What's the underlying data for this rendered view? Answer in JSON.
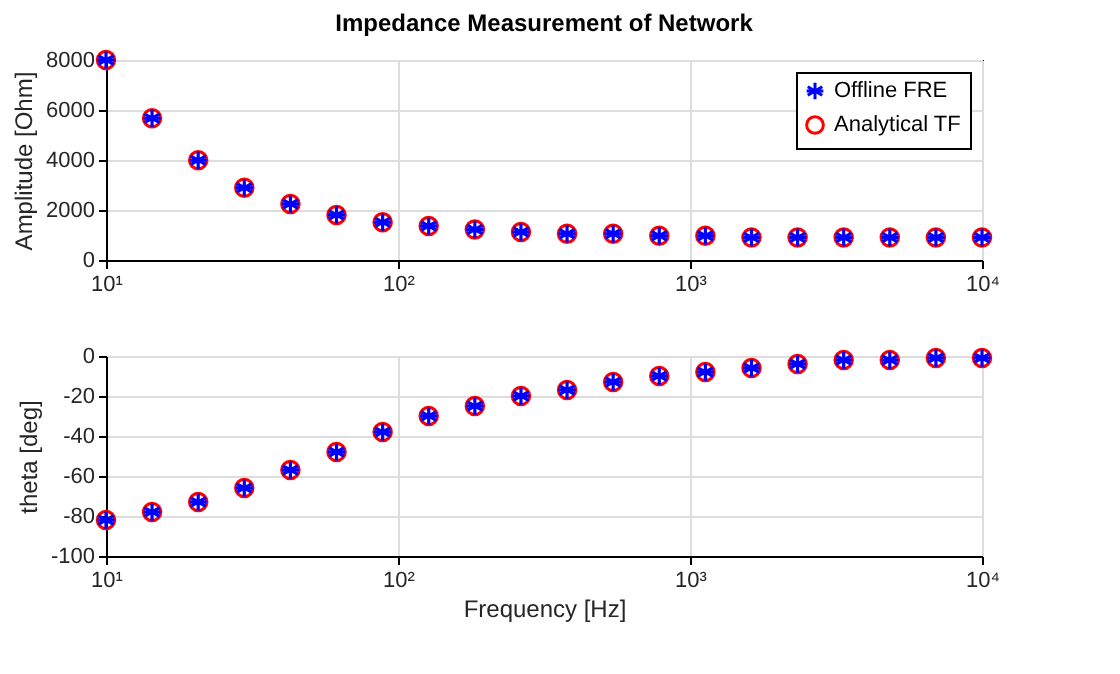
{
  "chart_data": [
    {
      "type": "scatter",
      "title": "Impedance Measurement of Network",
      "ylabel": "Amplitude [Ohm]",
      "log": "x",
      "x": [
        10,
        14.38,
        20.69,
        29.76,
        42.81,
        61.58,
        88.59,
        127.4,
        183.3,
        263.7,
        379.3,
        545.6,
        784.8,
        1129,
        1624,
        2336,
        3360,
        4833,
        6952,
        10000
      ],
      "series": [
        {
          "name": "Offline FRE",
          "color": "#0000ff",
          "marker": "cross",
          "values": [
            8000,
            5670,
            3990,
            2890,
            2240,
            1800,
            1510,
            1360,
            1220,
            1120,
            1050,
            1050,
            970,
            970,
            900,
            900,
            900,
            900,
            900,
            900
          ]
        },
        {
          "name": "Analytical TF",
          "color": "#ff0000",
          "marker": "circle",
          "values": [
            8000,
            5670,
            3990,
            2890,
            2240,
            1800,
            1510,
            1360,
            1220,
            1120,
            1050,
            1050,
            970,
            970,
            900,
            900,
            900,
            900,
            900,
            900
          ]
        }
      ],
      "xlim": [
        10,
        10000
      ],
      "xticks": [
        {
          "value": 10,
          "label": "10¹"
        },
        {
          "value": 100,
          "label": "10²"
        },
        {
          "value": 1000,
          "label": "10³"
        },
        {
          "value": 10000,
          "label": "10⁴"
        }
      ],
      "ylim": [
        0,
        8000
      ],
      "yticks": [
        0,
        2000,
        4000,
        6000,
        8000
      ],
      "grid": true,
      "legend": "top right"
    },
    {
      "type": "scatter",
      "xlabel": "Frequency [Hz]",
      "ylabel": "theta [deg]",
      "log": "x",
      "x": [
        10,
        14.38,
        20.69,
        29.76,
        42.81,
        61.58,
        88.59,
        127.4,
        183.3,
        263.7,
        379.3,
        545.6,
        784.8,
        1129,
        1624,
        2336,
        3360,
        4833,
        6952,
        10000
      ],
      "series": [
        {
          "color": "#0000ff",
          "marker": "cross",
          "values": [
            -82,
            -78,
            -73,
            -66,
            -57,
            -48,
            -38,
            -30,
            -25,
            -20,
            -17,
            -13,
            -10,
            -8,
            -6,
            -4,
            -2,
            -2,
            -1,
            -1
          ]
        },
        {
          "color": "#ff0000",
          "marker": "circle",
          "values": [
            -82,
            -78,
            -73,
            -66,
            -57,
            -48,
            -38,
            -30,
            -25,
            -20,
            -17,
            -13,
            -10,
            -8,
            -6,
            -4,
            -2,
            -2,
            -1,
            -1
          ]
        }
      ],
      "xlim": [
        10,
        10000
      ],
      "xticks": [
        {
          "value": 10,
          "label": "10¹"
        },
        {
          "value": 100,
          "label": "10²"
        },
        {
          "value": 1000,
          "label": "10³"
        },
        {
          "value": 10000,
          "label": "10⁴"
        }
      ],
      "ylim": [
        -100,
        0
      ],
      "yticks": [
        -100,
        -80,
        -60,
        -40,
        -20,
        0
      ],
      "grid": true
    }
  ]
}
